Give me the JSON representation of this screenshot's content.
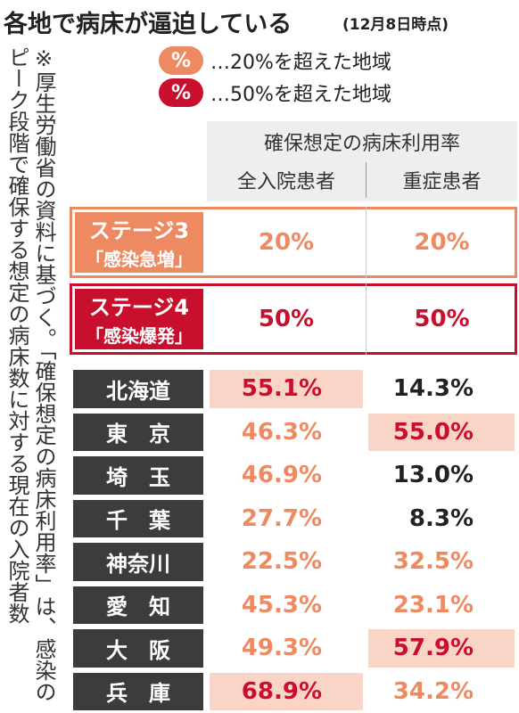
{
  "header": {
    "title": "各地で病床が逼迫している",
    "date": "(12月8日時点)"
  },
  "legend": [
    {
      "mark": "%",
      "text": "…20%を超えた地域",
      "color": "#ee8a62"
    },
    {
      "mark": "%",
      "text": "…50%を超えた地域",
      "color": "#c8102e"
    }
  ],
  "note": "※厚生労働省の資料に基づく。「確保想定の病床利用率」は、感染のピーク段階で確保する想定の病床数に対する現在の入院者数",
  "table": {
    "title": "確保想定の病床利用率",
    "columns": [
      "全入院患者",
      "重症患者"
    ],
    "stages": [
      {
        "name": "ステージ3",
        "sub": "「感染急増」",
        "values": [
          "20%",
          "20%"
        ],
        "color": "#ee8a62"
      },
      {
        "name": "ステージ4",
        "sub": "「感染爆発」",
        "values": [
          "50%",
          "50%"
        ],
        "color": "#c8102e"
      }
    ],
    "rows": [
      {
        "label": "北海道",
        "values": [
          "55.1%",
          "14.3%"
        ],
        "colors": [
          "#c8102e",
          "#222222"
        ],
        "fills": [
          "#fad4c6",
          "#ffffff"
        ]
      },
      {
        "label": "東　京",
        "values": [
          "46.3%",
          "55.0%"
        ],
        "colors": [
          "#ee8a62",
          "#c8102e"
        ],
        "fills": [
          "#ffffff",
          "#fad4c6"
        ]
      },
      {
        "label": "埼　玉",
        "values": [
          "46.9%",
          "13.0%"
        ],
        "colors": [
          "#ee8a62",
          "#222222"
        ],
        "fills": [
          "#ffffff",
          "#ffffff"
        ]
      },
      {
        "label": "千　葉",
        "values": [
          "27.7%",
          "8.3%"
        ],
        "colors": [
          "#ee8a62",
          "#222222"
        ],
        "fills": [
          "#ffffff",
          "#ffffff"
        ]
      },
      {
        "label": "神奈川",
        "values": [
          "22.5%",
          "32.5%"
        ],
        "colors": [
          "#ee8a62",
          "#ee8a62"
        ],
        "fills": [
          "#ffffff",
          "#ffffff"
        ]
      },
      {
        "label": "愛　知",
        "values": [
          "45.3%",
          "23.1%"
        ],
        "colors": [
          "#ee8a62",
          "#ee8a62"
        ],
        "fills": [
          "#ffffff",
          "#ffffff"
        ]
      },
      {
        "label": "大　阪",
        "values": [
          "49.3%",
          "57.9%"
        ],
        "colors": [
          "#ee8a62",
          "#c8102e"
        ],
        "fills": [
          "#ffffff",
          "#fad4c6"
        ]
      },
      {
        "label": "兵　庫",
        "values": [
          "68.9%",
          "34.2%"
        ],
        "colors": [
          "#c8102e",
          "#ee8a62"
        ],
        "fills": [
          "#fad4c6",
          "#ffffff"
        ]
      }
    ]
  }
}
